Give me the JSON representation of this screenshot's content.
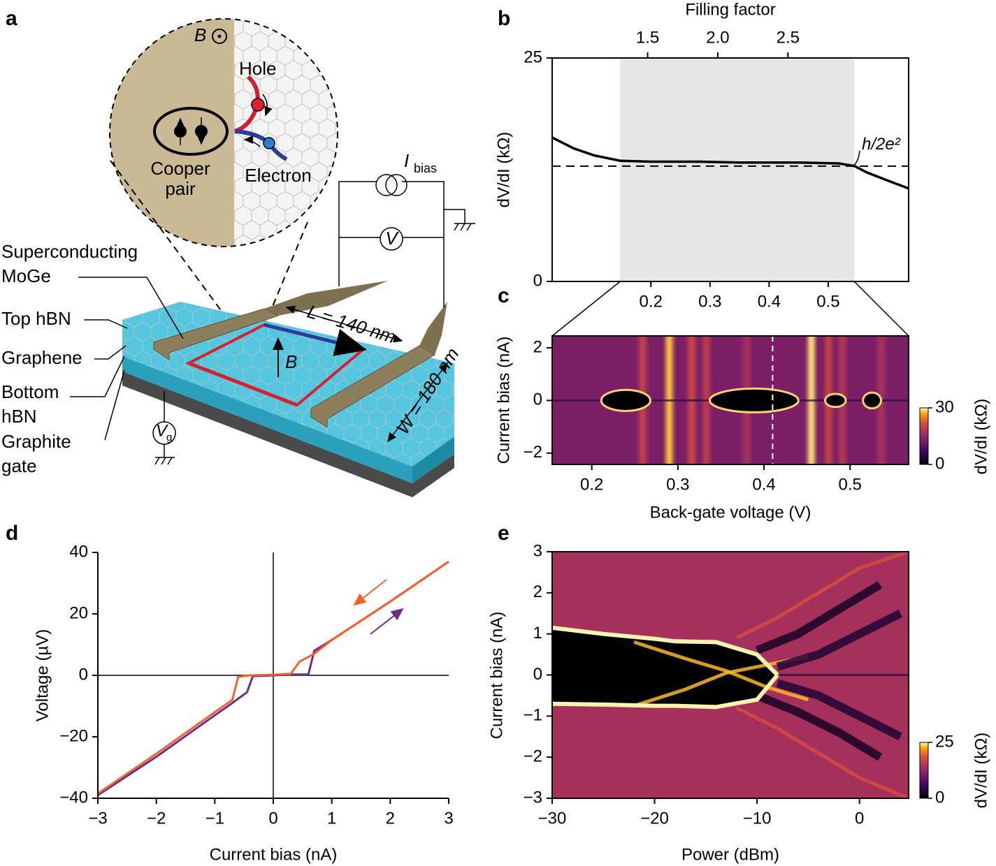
{
  "diagram": {
    "panel": "a",
    "layers": [
      [
        "Superconducting",
        "MoGe"
      ],
      [
        "Top hBN"
      ],
      [
        "Graphene"
      ],
      [
        "Bottom",
        "hBN"
      ],
      [
        "Graphite",
        "gate"
      ]
    ],
    "inset": {
      "field": "B",
      "hole": "Hole",
      "electron": "Electron",
      "cooper_pair": [
        "Cooper",
        "pair"
      ]
    },
    "current_source": {
      "symbol": "I",
      "subscript": "bias"
    },
    "voltmeter": "V",
    "gate": {
      "symbol": "V",
      "subscript": "g"
    },
    "field_arrow": "B",
    "length": "L = 140 nm",
    "width": "W = 180 nm"
  },
  "chart_data": [
    {
      "panel": "b",
      "type": "line",
      "ylabel": "dV/dI (kΩ)",
      "x2label": "Filling factor",
      "x": [
        0.033,
        0.069,
        0.104,
        0.148,
        0.2,
        0.282,
        0.35,
        0.4,
        0.45,
        0.518,
        0.545,
        0.565,
        0.6,
        0.636
      ],
      "values": [
        16.1,
        14.9,
        14.1,
        13.5,
        13.4,
        13.4,
        13.3,
        13.3,
        13.3,
        13.2,
        12.9,
        12.2,
        11.3,
        10.4
      ],
      "color": "#000000",
      "xlim": [
        0.033,
        0.636
      ],
      "xticks": [
        0.2,
        0.3,
        0.4,
        0.5
      ],
      "ylim": [
        0,
        25
      ],
      "yticks": [
        0,
        25
      ],
      "x2lim": [
        0.82,
        3.36
      ],
      "x2ticks": [
        1.5,
        {
          "value": 2,
          "label": "2.0"
        },
        2.5
      ],
      "shade": [
        0.148,
        0.544
      ],
      "reference": {
        "value": 12.9,
        "label": "h/2e²"
      }
    },
    {
      "panel": "c",
      "type": "heatmap",
      "xlabel": "Back-gate voltage (V)",
      "ylabel": "Current bias (nA)",
      "xlim": [
        0.154,
        0.568
      ],
      "xticks": [
        0.2,
        0.3,
        0.4,
        0.5
      ],
      "ylim": [
        -2.43,
        2.45
      ],
      "yticks": [
        {
          "value": -2,
          "label": "−2"
        },
        0,
        2
      ],
      "colorbar": {
        "label": "dV/dI (kΩ)",
        "lim": [
          0,
          30
        ],
        "ticks": [
          0,
          30
        ]
      },
      "background": 13,
      "stripes": [
        {
          "x": 0.259,
          "level": 20
        },
        {
          "x": 0.29,
          "level": 28
        },
        {
          "x": 0.316,
          "level": 21
        },
        {
          "x": 0.333,
          "level": 19
        },
        {
          "x": 0.38,
          "level": 17
        },
        {
          "x": 0.455,
          "level": 29
        },
        {
          "x": 0.475,
          "level": 20
        },
        {
          "x": 0.491,
          "level": 18
        },
        {
          "x": 0.536,
          "level": 17
        }
      ],
      "pockets": [
        {
          "x": [
            0.211,
            0.268
          ],
          "halfwidth": 0.4
        },
        {
          "x": [
            0.337,
            0.44
          ],
          "halfwidth": 0.45
        },
        {
          "x": [
            0.471,
            0.495
          ],
          "halfwidth": 0.25
        },
        {
          "x": [
            0.515,
            0.536
          ],
          "halfwidth": 0.3
        }
      ],
      "marker": 0.41
    },
    {
      "panel": "d",
      "type": "line",
      "xlabel": "Current bias (nA)",
      "ylabel": "Voltage (µV)",
      "xlim": [
        -3,
        3
      ],
      "xticks": [
        {
          "value": -3,
          "label": "−3"
        },
        {
          "value": -2,
          "label": "−2"
        },
        {
          "value": -1,
          "label": "−1"
        },
        0,
        1,
        2,
        3
      ],
      "ylim": [
        -40,
        40
      ],
      "yticks": [
        {
          "value": -40,
          "label": "−40"
        },
        {
          "value": -20,
          "label": "−20"
        },
        0,
        20,
        40
      ],
      "series": [
        {
          "color": "#6b2d8c",
          "x": [
            -3,
            -2,
            -1,
            -0.7,
            -0.45,
            -0.35,
            0,
            0.35,
            0.6,
            0.7,
            1,
            2,
            3
          ],
          "values": [
            -39,
            -26.5,
            -13,
            -9,
            -5.5,
            -0.3,
            0,
            0.3,
            0.3,
            8,
            11.5,
            24,
            37
          ]
        },
        {
          "color": "#f0622a",
          "x": [
            -3,
            -2,
            -1,
            -0.7,
            -0.6,
            -0.4,
            0,
            0.3,
            0.45,
            0.7,
            1,
            2,
            3
          ],
          "values": [
            -38.5,
            -25.5,
            -12,
            -8,
            -0.5,
            0,
            0.2,
            0.5,
            4.5,
            7,
            11.5,
            24,
            37
          ]
        }
      ]
    },
    {
      "panel": "e",
      "type": "heatmap",
      "xlabel": "Power (dBm)",
      "ylabel": "Current bias (nA)",
      "xlim": [
        -30,
        4.8
      ],
      "xticks": [
        {
          "value": -30,
          "label": "−30"
        },
        {
          "value": -20,
          "label": "−20"
        },
        {
          "value": -10,
          "label": "−10"
        },
        0
      ],
      "ylim": [
        -3,
        3
      ],
      "yticks": [
        {
          "value": -3,
          "label": "−3"
        },
        {
          "value": -2,
          "label": "−2"
        },
        {
          "value": -1,
          "label": "−1"
        },
        0,
        1,
        2,
        3
      ],
      "colorbar": {
        "label": "dV/dI (kΩ)",
        "lim": [
          0,
          25
        ],
        "ticks": [
          0,
          25
        ]
      },
      "background": 14,
      "upper": {
        "x": [
          -30,
          -25,
          -20,
          -18,
          -14,
          -10,
          -8
        ],
        "values": [
          1.15,
          1.0,
          0.88,
          0.82,
          0.8,
          0.5,
          0
        ]
      },
      "lower": {
        "x": [
          -30,
          -25,
          -20,
          -18,
          -14,
          -10,
          -8
        ],
        "values": [
          -0.7,
          -0.72,
          -0.75,
          -0.75,
          -0.78,
          -0.6,
          0
        ]
      },
      "fringes": [
        {
          "x": [
            -22,
            -17,
            -13,
            -9,
            -5
          ],
          "values": [
            -0.75,
            -0.35,
            0.05,
            0.25,
            0.45
          ],
          "level": 23
        },
        {
          "x": [
            -22,
            -17,
            -13,
            -9,
            -5
          ],
          "values": [
            0.8,
            0.4,
            0.1,
            -0.3,
            -0.6
          ],
          "level": 23
        },
        {
          "x": [
            -12,
            -8,
            -4,
            0,
            4.8
          ],
          "values": [
            0.9,
            1.4,
            2.0,
            2.6,
            3
          ],
          "level": 18
        },
        {
          "x": [
            -12,
            -8,
            -4,
            0,
            4.8
          ],
          "values": [
            -0.8,
            -1.3,
            -1.9,
            -2.5,
            -3
          ],
          "level": 18
        },
        {
          "x": [
            -10,
            -6,
            -2,
            2
          ],
          "values": [
            0.6,
            1.0,
            1.6,
            2.2
          ],
          "level": 2
        },
        {
          "x": [
            -10,
            -6,
            -2,
            2
          ],
          "values": [
            -0.5,
            -0.9,
            -1.4,
            -2.0
          ],
          "level": 2
        },
        {
          "x": [
            -8,
            -4,
            0,
            4
          ],
          "values": [
            0.2,
            0.5,
            1.0,
            1.5
          ],
          "level": 3
        },
        {
          "x": [
            -8,
            -4,
            0,
            4
          ],
          "values": [
            -0.2,
            -0.5,
            -1.0,
            -1.5
          ],
          "level": 3
        }
      ]
    }
  ]
}
